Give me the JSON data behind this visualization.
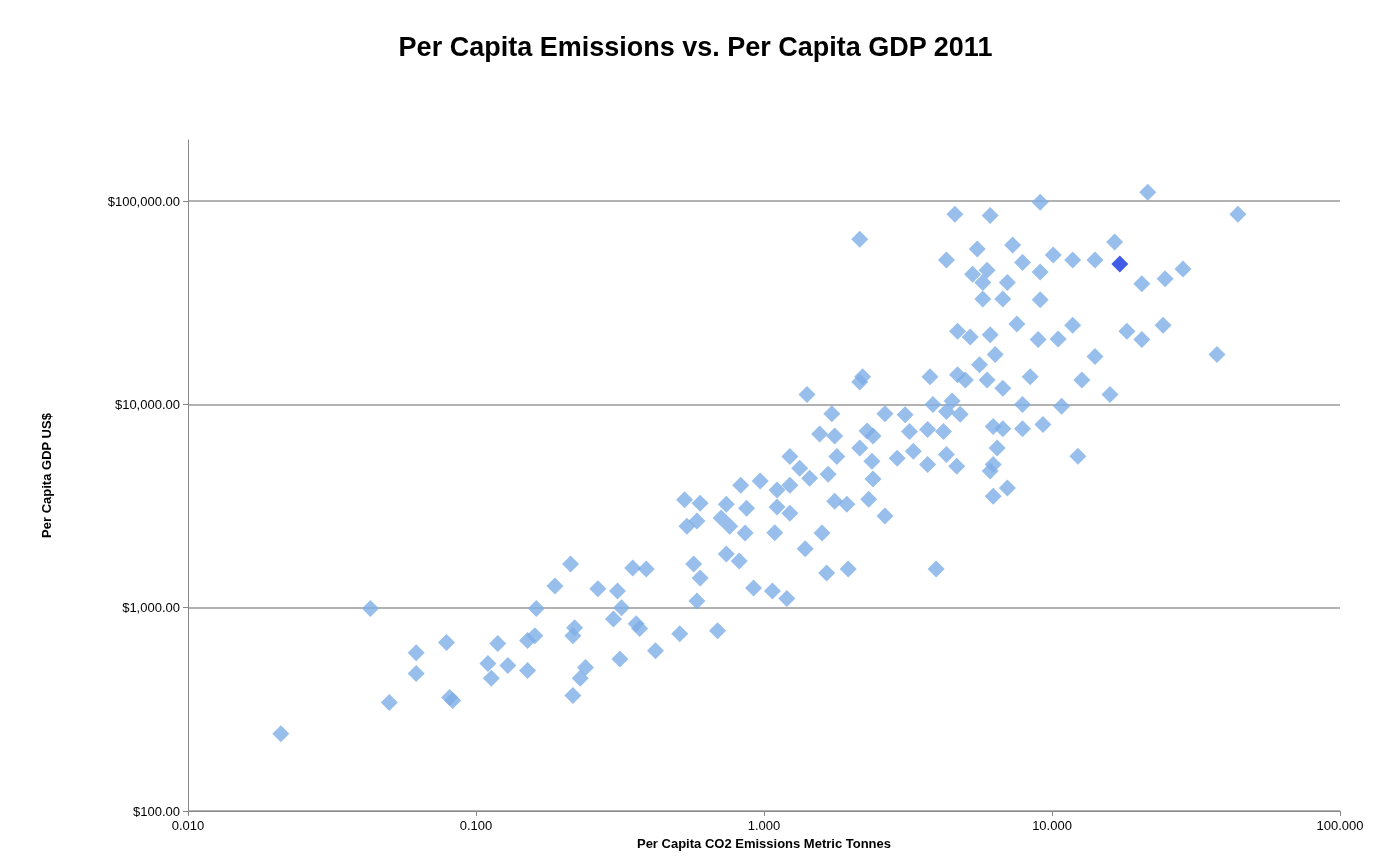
{
  "chart_data": {
    "type": "scatter",
    "title": "Per Capita Emissions vs. Per Capita GDP 2011",
    "xlabel": "Per Capita CO2 Emissions Metric Tonnes",
    "ylabel": "Per Capita GDP US$",
    "log": "xy",
    "grid": "y",
    "marker": "diamond",
    "xlim": [
      0.01,
      100
    ],
    "xticks": [
      {
        "value": 0.01,
        "label": "0.010"
      },
      {
        "value": 0.1,
        "label": "0.100"
      },
      {
        "value": 1,
        "label": "1.000"
      },
      {
        "value": 10,
        "label": "10.000"
      },
      {
        "value": 100,
        "label": "100.000"
      }
    ],
    "ylim": [
      100,
      200000
    ],
    "yticks": [
      {
        "value": 100,
        "label": "$100.00"
      },
      {
        "value": 1000,
        "label": "$1,000.00"
      },
      {
        "value": 10000,
        "label": "$10,000.00"
      },
      {
        "value": 100000,
        "label": "$100,000.00"
      }
    ],
    "series": [
      {
        "color": "#7eaee6",
        "x": [
          0.021,
          0.043,
          0.05,
          0.062,
          0.062,
          0.079,
          0.081,
          0.083,
          0.11,
          0.113,
          0.119,
          0.129,
          0.151,
          0.151,
          0.16,
          0.162,
          0.188,
          0.213,
          0.217,
          0.217,
          0.22,
          0.23,
          0.24,
          0.265,
          0.3,
          0.31,
          0.32,
          0.316,
          0.35,
          0.36,
          0.37,
          0.39,
          0.42,
          0.51,
          0.53,
          0.54,
          0.57,
          0.585,
          0.585,
          0.6,
          0.6,
          0.69,
          0.71,
          0.74,
          0.74,
          0.76,
          0.82,
          0.83,
          0.86,
          0.87,
          0.92,
          0.97,
          1.07,
          1.09,
          1.11,
          1.11,
          1.2,
          1.23,
          1.23,
          1.23,
          1.33,
          1.39,
          1.41,
          1.44,
          1.56,
          1.59,
          1.65,
          1.67,
          1.72,
          1.76,
          1.76,
          1.79,
          1.94,
          1.96,
          2.15,
          2.15,
          2.15,
          2.2,
          2.28,
          2.31,
          2.37,
          2.39,
          2.39,
          2.63,
          2.63,
          2.9,
          3.09,
          3.2,
          3.3,
          3.7,
          3.7,
          3.77,
          3.86,
          3.96,
          4.2,
          4.3,
          4.3,
          4.3,
          4.5,
          4.6,
          4.67,
          4.7,
          4.7,
          4.8,
          5,
          5.2,
          5.3,
          5.5,
          5.6,
          5.75,
          5.75,
          5.95,
          5.95,
          6.1,
          6.1,
          6.1,
          6.25,
          6.25,
          6.25,
          6.35,
          6.45,
          6.75,
          6.75,
          6.75,
          7,
          7,
          7.3,
          7.55,
          7.9,
          7.9,
          7.9,
          8.4,
          8.95,
          9.1,
          9.1,
          9.1,
          9.3,
          10.1,
          10.8,
          10.5,
          11.8,
          11.8,
          12.3,
          12.7,
          14.1,
          14.1,
          15.9,
          16.5,
          18.2,
          20.5,
          20.5,
          21.5,
          24.3,
          24.7,
          28.5,
          37.4,
          44.2
        ],
        "values": [
          240,
          990,
          342,
          600,
          475,
          674,
          362,
          350,
          532,
          450,
          666,
          520,
          491,
          689,
          729,
          990,
          1280,
          1640,
          370,
          729,
          798,
          450,
          508,
          1240,
          880,
          1210,
          1000,
          560,
          1570,
          835,
          790,
          1550,
          615,
          745,
          3400,
          2520,
          1640,
          2670,
          1080,
          3270,
          1400,
          770,
          2760,
          3230,
          1840,
          2520,
          1700,
          4000,
          2330,
          3090,
          1250,
          4200,
          1210,
          2340,
          3800,
          3130,
          1110,
          5550,
          2920,
          4000,
          4860,
          1950,
          11200,
          4340,
          7150,
          2330,
          1480,
          4540,
          9000,
          7000,
          3340,
          5550,
          3230,
          1550,
          65000,
          6100,
          12900,
          13700,
          7400,
          3420,
          5250,
          4300,
          7000,
          9000,
          2830,
          5430,
          8900,
          7360,
          5880,
          7530,
          5070,
          13700,
          10000,
          1550,
          7360,
          9230,
          5680,
          51400,
          10400,
          86300,
          4970,
          14000,
          22900,
          8950,
          13200,
          21500,
          43700,
          58200,
          15700,
          39800,
          33000,
          45800,
          13200,
          85000,
          22000,
          4700,
          7800,
          5060,
          3540,
          17600,
          6100,
          33000,
          12000,
          7600,
          39800,
          3880,
          60800,
          24900,
          50000,
          7600,
          10000,
          13700,
          20900,
          98900,
          44900,
          32700,
          7980,
          54300,
          9800,
          21000,
          51400,
          24500,
          5560,
          13200,
          51400,
          17200,
          11200,
          63000,
          22900,
          20900,
          39200,
          110700,
          24500,
          41500,
          46400,
          17600,
          86300
        ]
      },
      {
        "color": "#1133e0",
        "x": [
          17.2
        ],
        "values": [
          49100
        ]
      }
    ]
  }
}
